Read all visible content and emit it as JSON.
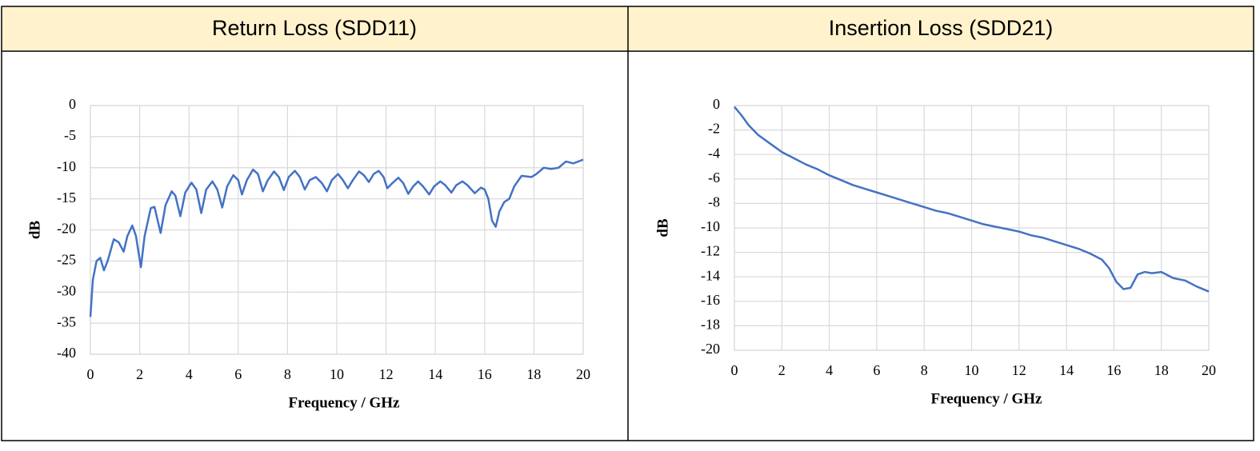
{
  "chart_data": [
    {
      "type": "line",
      "title": "Return Loss (SDD11)",
      "xlabel": "Frequency / GHz",
      "ylabel": "dB",
      "color": "#4472c4",
      "grid": true,
      "xlim": [
        0,
        20
      ],
      "xticks": [
        0,
        2,
        4,
        6,
        8,
        10,
        12,
        14,
        16,
        18,
        20
      ],
      "ylim": [
        -40,
        0
      ],
      "yticks": [
        0,
        -5,
        -10,
        -15,
        -20,
        -25,
        -30,
        -35,
        -40
      ],
      "x": [
        0,
        0.1,
        0.25,
        0.4,
        0.55,
        0.7,
        0.95,
        1.15,
        1.35,
        1.5,
        1.7,
        1.85,
        2.05,
        2.2,
        2.45,
        2.6,
        2.85,
        3.05,
        3.3,
        3.45,
        3.65,
        3.85,
        4.1,
        4.3,
        4.5,
        4.7,
        4.95,
        5.15,
        5.35,
        5.55,
        5.8,
        6.0,
        6.15,
        6.35,
        6.6,
        6.8,
        7.0,
        7.2,
        7.45,
        7.65,
        7.85,
        8.05,
        8.3,
        8.5,
        8.7,
        8.9,
        9.15,
        9.4,
        9.6,
        9.8,
        10.05,
        10.25,
        10.45,
        10.65,
        10.9,
        11.1,
        11.3,
        11.5,
        11.7,
        11.9,
        12.05,
        12.25,
        12.5,
        12.7,
        12.9,
        13.1,
        13.3,
        13.5,
        13.75,
        13.95,
        14.2,
        14.4,
        14.65,
        14.85,
        15.1,
        15.3,
        15.6,
        15.85,
        16.0,
        16.15,
        16.3,
        16.45,
        16.6,
        16.8,
        17.0,
        17.2,
        17.5,
        17.9,
        18.1,
        18.4,
        18.7,
        19.0,
        19.3,
        19.6,
        20
      ],
      "values": [
        -34,
        -28,
        -25,
        -24.5,
        -26.5,
        -25,
        -21.5,
        -22,
        -23.5,
        -21,
        -19.3,
        -21,
        -26,
        -21,
        -16.5,
        -16.3,
        -20.5,
        -16,
        -13.8,
        -14.5,
        -17.8,
        -14,
        -12.4,
        -13.5,
        -17.3,
        -13.5,
        -12.2,
        -13.5,
        -16.4,
        -13,
        -11.2,
        -12,
        -14.3,
        -12,
        -10.3,
        -11,
        -13.8,
        -12,
        -10.6,
        -11.5,
        -13.6,
        -11.5,
        -10.5,
        -11.5,
        -13.5,
        -12,
        -11.5,
        -12.5,
        -13.8,
        -12,
        -11,
        -12,
        -13.3,
        -12,
        -10.6,
        -11.2,
        -12.3,
        -11,
        -10.5,
        -11.5,
        -13.3,
        -12.5,
        -11.6,
        -12.5,
        -14.2,
        -13,
        -12.2,
        -13,
        -14.3,
        -13,
        -12.2,
        -12.8,
        -14,
        -12.8,
        -12.2,
        -12.8,
        -14.1,
        -13.2,
        -13.5,
        -15,
        -18.5,
        -19.5,
        -17,
        -15.5,
        -15,
        -13,
        -11.3,
        -11.5,
        -11,
        -10,
        -10.2,
        -10,
        -9,
        -9.3,
        -8.7
      ]
    },
    {
      "type": "line",
      "title": "Insertion Loss (SDD21)",
      "xlabel": "Frequency / GHz",
      "ylabel": "dB",
      "color": "#4472c4",
      "grid": true,
      "xlim": [
        0,
        20
      ],
      "xticks": [
        0,
        2,
        4,
        6,
        8,
        10,
        12,
        14,
        16,
        18,
        20
      ],
      "ylim": [
        -20,
        0
      ],
      "yticks": [
        0,
        -2,
        -4,
        -6,
        -8,
        -10,
        -12,
        -14,
        -16,
        -18,
        -20
      ],
      "x": [
        0,
        0.3,
        0.6,
        1,
        1.5,
        2,
        2.5,
        3,
        3.5,
        4,
        4.5,
        5,
        5.5,
        6,
        6.5,
        7,
        7.5,
        8,
        8.5,
        9,
        9.5,
        10,
        10.5,
        11,
        11.5,
        12,
        12.5,
        13,
        13.5,
        14,
        14.5,
        15,
        15.5,
        15.8,
        16.1,
        16.4,
        16.7,
        17.0,
        17.3,
        17.6,
        18,
        18.5,
        19,
        19.5,
        20
      ],
      "values": [
        -0.1,
        -0.8,
        -1.6,
        -2.4,
        -3.1,
        -3.8,
        -4.3,
        -4.8,
        -5.2,
        -5.7,
        -6.1,
        -6.5,
        -6.8,
        -7.1,
        -7.4,
        -7.7,
        -8,
        -8.3,
        -8.6,
        -8.8,
        -9.1,
        -9.4,
        -9.7,
        -9.9,
        -10.1,
        -10.3,
        -10.6,
        -10.8,
        -11.1,
        -11.4,
        -11.7,
        -12.1,
        -12.6,
        -13.3,
        -14.4,
        -15,
        -14.9,
        -13.8,
        -13.6,
        -13.7,
        -13.6,
        -14.1,
        -14.3,
        -14.8,
        -15.2
      ]
    }
  ]
}
